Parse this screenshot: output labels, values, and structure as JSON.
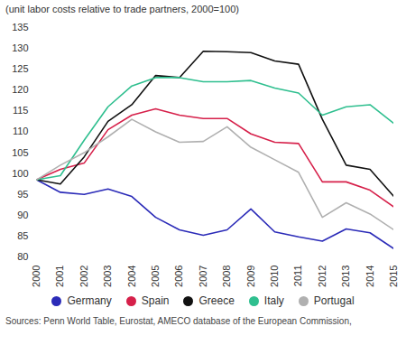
{
  "chart_data": {
    "type": "line",
    "subtitle": "(unit labor costs relative to trade partners, 2000=100)",
    "caption": "Sources: Penn World Table, Eurostat, AMECO database of the European Commission,",
    "x": [
      2000,
      2001,
      2002,
      2003,
      2004,
      2005,
      2006,
      2007,
      2008,
      2009,
      2010,
      2011,
      2012,
      2013,
      2014,
      2015
    ],
    "xlim": [
      2000,
      2015
    ],
    "xticks": [
      2000,
      2001,
      2002,
      2003,
      2004,
      2005,
      2006,
      2007,
      2008,
      2009,
      2010,
      2011,
      2012,
      2013,
      2014,
      2015
    ],
    "ylim": [
      80,
      135
    ],
    "yticks": [
      80,
      85,
      90,
      95,
      100,
      105,
      110,
      115,
      120,
      125,
      130,
      135
    ],
    "grid": false,
    "legend": "bottom",
    "series": [
      {
        "name": "Germany",
        "color": "#2b2bb8",
        "values": [
          98.5,
          95.5,
          95,
          96.3,
          94.5,
          89.5,
          86.5,
          85.2,
          86.5,
          91.5,
          86,
          84.8,
          83.8,
          86.7,
          85.8,
          82
        ]
      },
      {
        "name": "Spain",
        "color": "#d6204a",
        "values": [
          98.5,
          101,
          102.5,
          110.5,
          114,
          115.5,
          114,
          113.2,
          113.2,
          109.5,
          107.5,
          107.2,
          98,
          98,
          96,
          92
        ]
      },
      {
        "name": "Greece",
        "color": "#111111",
        "values": [
          98.5,
          97.5,
          104,
          112.5,
          116.5,
          123.5,
          123,
          129.3,
          129.2,
          129,
          127,
          126.2,
          113,
          102,
          101,
          94.5
        ]
      },
      {
        "name": "Italy",
        "color": "#2fbf8f",
        "values": [
          98.5,
          99.5,
          108,
          116,
          121,
          123,
          123,
          122,
          122,
          122.3,
          120.5,
          119.3,
          114,
          116,
          116.5,
          112
        ]
      },
      {
        "name": "Portugal",
        "color": "#b0b0b0",
        "values": [
          98.5,
          102,
          105,
          108.8,
          113,
          110,
          107.5,
          107.7,
          111.2,
          106.3,
          103.3,
          100.3,
          89.5,
          93,
          90.3,
          86.5
        ]
      }
    ]
  }
}
